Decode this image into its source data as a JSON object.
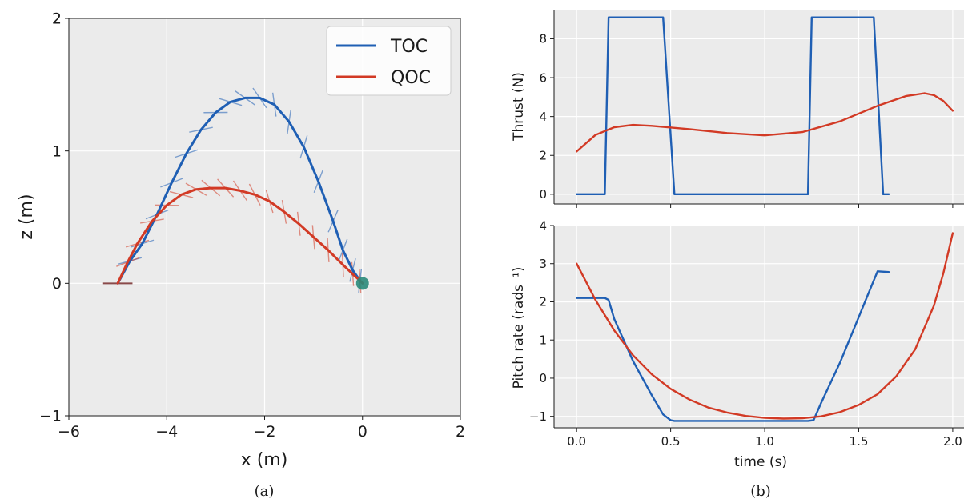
{
  "captions": {
    "a": "(a)",
    "b": "(b)"
  },
  "colors": {
    "toc": "#1f5fb4",
    "qoc": "#d23a25",
    "bg": "#ebebeb",
    "grid": "#ffffff",
    "goal": "#2a8a7a"
  },
  "chart_data": [
    {
      "type": "line",
      "xlabel": "x (m)",
      "ylabel": "z (m)",
      "xlim": [
        -6,
        2
      ],
      "ylim": [
        -1,
        2
      ],
      "xticks": [
        -6,
        -4,
        -2,
        0,
        2
      ],
      "xtick_labels": [
        "−6",
        "−4",
        "−2",
        "0",
        "2"
      ],
      "yticks": [
        -1,
        0,
        1,
        2
      ],
      "ytick_labels": [
        "−1",
        "0",
        "1",
        "2"
      ],
      "grid": true,
      "legend": {
        "position": "top-right",
        "entries": [
          "TOC",
          "QOC"
        ]
      },
      "series": [
        {
          "name": "TOC",
          "x": [
            -5.0,
            -4.75,
            -4.5,
            -4.2,
            -3.9,
            -3.6,
            -3.3,
            -3.0,
            -2.7,
            -2.4,
            -2.1,
            -1.8,
            -1.5,
            -1.2,
            -0.9,
            -0.6,
            -0.4,
            -0.2,
            -0.05,
            0.0
          ],
          "y": [
            0.0,
            0.17,
            0.3,
            0.52,
            0.76,
            0.98,
            1.16,
            1.29,
            1.37,
            1.4,
            1.4,
            1.35,
            1.22,
            1.03,
            0.77,
            0.47,
            0.25,
            0.1,
            0.02,
            0.0
          ]
        },
        {
          "name": "QOC",
          "x": [
            -5.0,
            -4.8,
            -4.6,
            -4.3,
            -4.0,
            -3.7,
            -3.4,
            -3.1,
            -2.8,
            -2.5,
            -2.2,
            -1.9,
            -1.6,
            -1.3,
            -1.0,
            -0.7,
            -0.4,
            -0.2,
            -0.05,
            0.0
          ],
          "y": [
            0.0,
            0.16,
            0.3,
            0.47,
            0.59,
            0.67,
            0.71,
            0.72,
            0.72,
            0.7,
            0.67,
            0.62,
            0.54,
            0.45,
            0.35,
            0.25,
            0.14,
            0.07,
            0.02,
            0.0
          ]
        }
      ]
    },
    {
      "type": "line",
      "xlabel": "",
      "ylabel": "Thrust (N)",
      "xlim": [
        -0.12,
        2.06
      ],
      "ylim": [
        -0.5,
        9.5
      ],
      "yticks": [
        0,
        2,
        4,
        6,
        8
      ],
      "ytick_labels": [
        "0",
        "2",
        "4",
        "6",
        "8"
      ],
      "grid": true,
      "series": [
        {
          "name": "TOC",
          "x": [
            0.0,
            0.15,
            0.17,
            0.46,
            0.52,
            1.23,
            1.25,
            1.58,
            1.63,
            1.66
          ],
          "y": [
            0.0,
            0.0,
            9.1,
            9.1,
            0.0,
            0.0,
            9.1,
            9.1,
            0.0,
            0.0
          ]
        },
        {
          "name": "QOC",
          "x": [
            0.0,
            0.1,
            0.2,
            0.3,
            0.4,
            0.6,
            0.8,
            1.0,
            1.2,
            1.4,
            1.6,
            1.75,
            1.85,
            1.9,
            1.95,
            2.0
          ],
          "y": [
            2.2,
            3.05,
            3.45,
            3.57,
            3.52,
            3.35,
            3.15,
            3.03,
            3.2,
            3.75,
            4.55,
            5.05,
            5.2,
            5.1,
            4.8,
            4.3
          ]
        }
      ]
    },
    {
      "type": "line",
      "xlabel": "time (s)",
      "ylabel": "Pitch rate (rads⁻¹)",
      "xlim": [
        -0.12,
        2.06
      ],
      "ylim": [
        -1.3,
        4.0
      ],
      "xticks": [
        0.0,
        0.5,
        1.0,
        1.5,
        2.0
      ],
      "xtick_labels": [
        "0.0",
        "0.5",
        "1.0",
        "1.5",
        "2.0"
      ],
      "yticks": [
        -1,
        0,
        1,
        2,
        3,
        4
      ],
      "ytick_labels": [
        "−1",
        "0",
        "1",
        "2",
        "3",
        "4"
      ],
      "grid": true,
      "series": [
        {
          "name": "TOC",
          "x": [
            0.0,
            0.15,
            0.17,
            0.2,
            0.3,
            0.4,
            0.46,
            0.5,
            0.52,
            1.23,
            1.26,
            1.3,
            1.4,
            1.5,
            1.55,
            1.6,
            1.66
          ],
          "y": [
            2.1,
            2.1,
            2.05,
            1.55,
            0.45,
            -0.45,
            -0.95,
            -1.1,
            -1.12,
            -1.12,
            -1.1,
            -0.65,
            0.4,
            1.6,
            2.2,
            2.8,
            2.78
          ]
        },
        {
          "name": "QOC",
          "x": [
            0.0,
            0.1,
            0.2,
            0.3,
            0.4,
            0.5,
            0.6,
            0.7,
            0.8,
            0.9,
            1.0,
            1.1,
            1.2,
            1.3,
            1.4,
            1.5,
            1.6,
            1.7,
            1.8,
            1.9,
            1.95,
            2.0
          ],
          "y": [
            3.0,
            2.05,
            1.25,
            0.6,
            0.1,
            -0.28,
            -0.56,
            -0.77,
            -0.9,
            -0.99,
            -1.04,
            -1.06,
            -1.05,
            -1.0,
            -0.89,
            -0.7,
            -0.42,
            0.05,
            0.75,
            1.9,
            2.75,
            3.8
          ]
        }
      ]
    }
  ]
}
